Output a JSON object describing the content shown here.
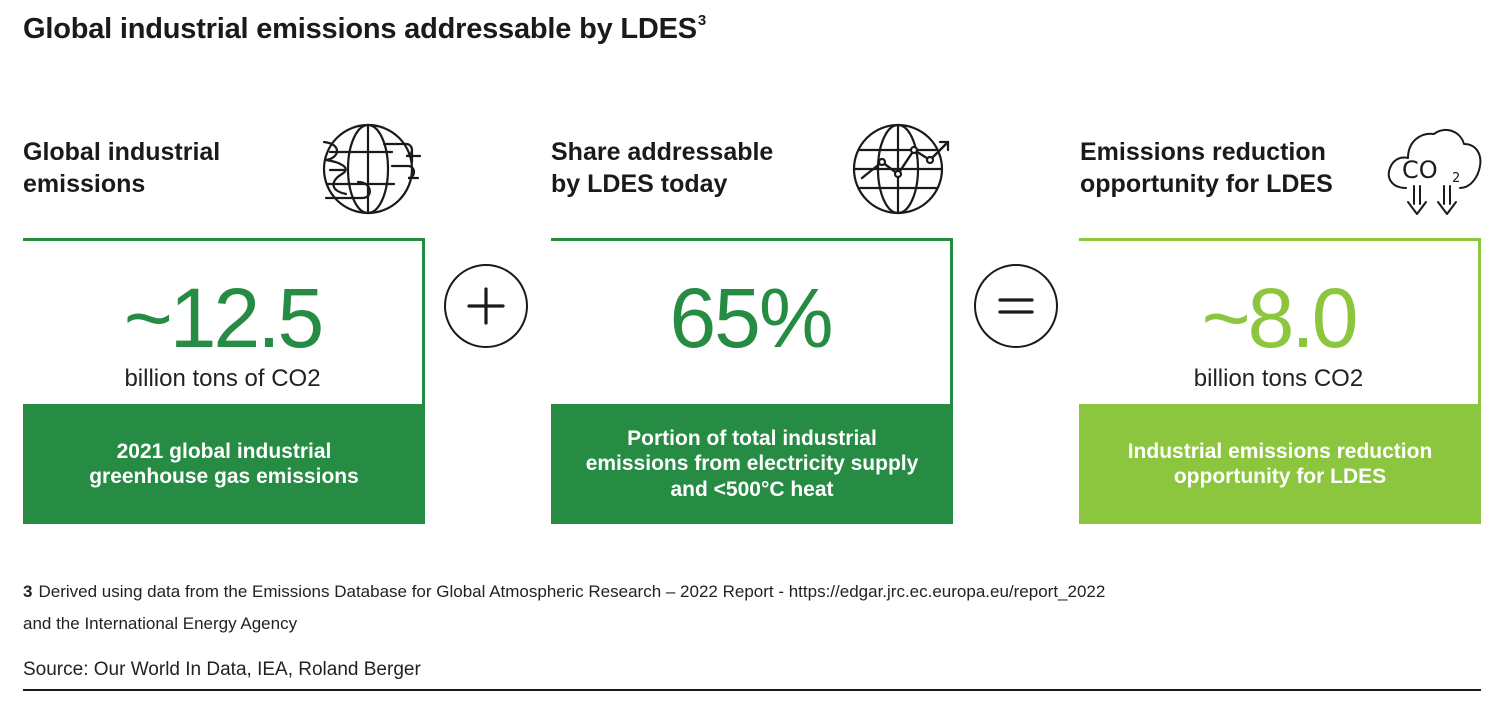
{
  "title": {
    "text": "Global industrial emissions addressable by LDES",
    "footnote_ref": "3"
  },
  "colors": {
    "dark_green": "#268c43",
    "light_green": "#8cc63f",
    "dark_text": "#1a1a1a"
  },
  "columns": [
    {
      "heading": [
        "Global industrial",
        "emissions"
      ],
      "icon": "globe-factory-icon",
      "value": "~12.5",
      "unit": "billion tons of CO2",
      "band": [
        "2021 global industrial",
        "greenhouse gas emissions"
      ]
    },
    {
      "heading": [
        "Share addressable",
        "by LDES today"
      ],
      "icon": "globe-trend-icon",
      "value": "65%",
      "unit": "",
      "band": [
        "Portion of total industrial",
        "emissions from electricity supply",
        "and <500°C heat"
      ]
    },
    {
      "heading": [
        "Emissions reduction",
        "opportunity for LDES"
      ],
      "icon": "co2-cloud-down-icon",
      "icon_text": {
        "main": "CO",
        "sub": "2"
      },
      "value": "~8.0",
      "unit": "billion tons CO2",
      "band": [
        "Industrial emissions reduction",
        "opportunity for LDES"
      ]
    }
  ],
  "operators": [
    {
      "symbol": "plus",
      "icon": "plus-circle-icon"
    },
    {
      "symbol": "equals",
      "icon": "equals-circle-icon"
    }
  ],
  "footnote": {
    "number": "3",
    "line1": "Derived using data from the Emissions Database for Global Atmospheric Research – 2022 Report - https://edgar.jrc.ec.europa.eu/report_2022",
    "line2": "and the International Energy Agency"
  },
  "source": "Source: Our World In Data, IEA, Roland Berger"
}
